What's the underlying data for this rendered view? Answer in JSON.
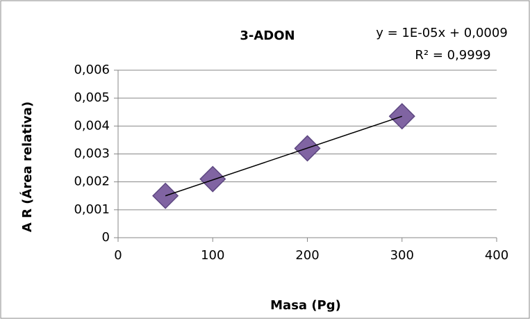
{
  "chart_data": {
    "type": "scatter",
    "title": "3-ADON",
    "annotations": [
      "y = 1E-05x + 0,0009",
      "R² = 0,9999"
    ],
    "x_label": "Masa (Pg)",
    "y_label": "A R (Área relativa)",
    "series": [
      {
        "name": "3-ADON",
        "color": "#8064a2",
        "x": [
          50,
          100,
          200,
          300
        ],
        "values": [
          0.0015,
          0.0021,
          0.0032,
          0.00435
        ]
      }
    ],
    "trendline": {
      "color": "#000000",
      "x": [
        50,
        300
      ],
      "values": [
        0.0015,
        0.00435
      ]
    },
    "xlim": [
      0,
      400
    ],
    "xticks": [
      0,
      100,
      200,
      300,
      400
    ],
    "ylim": [
      0,
      0.006
    ],
    "yticks": [
      0,
      {
        "value": 0.001,
        "label": "0,001"
      },
      {
        "value": 0.002,
        "label": "0,002"
      },
      {
        "value": 0.003,
        "label": "0,003"
      },
      {
        "value": 0.004,
        "label": "0,004"
      },
      {
        "value": 0.005,
        "label": "0,005"
      },
      {
        "value": 0.006,
        "label": "0,006"
      }
    ],
    "grid": true
  }
}
